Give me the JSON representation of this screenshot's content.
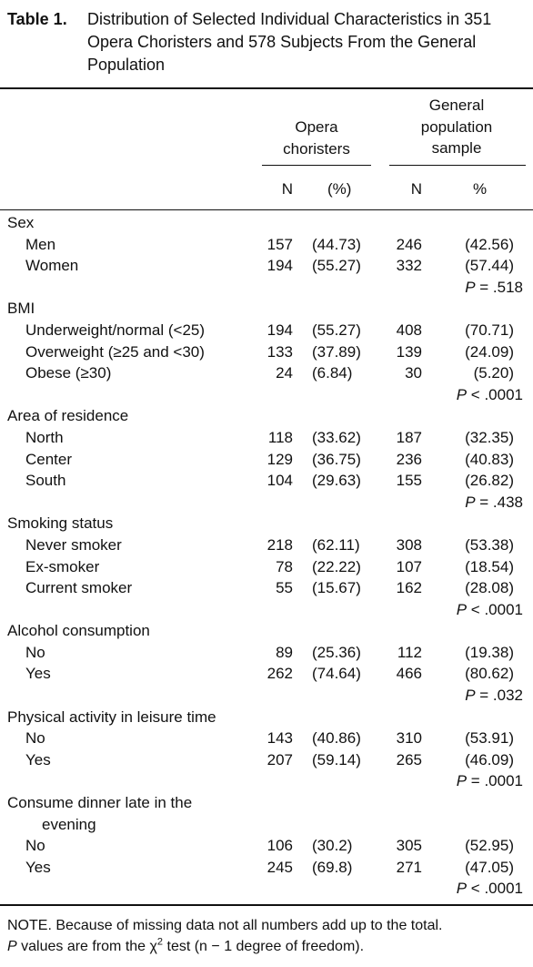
{
  "header": {
    "label": "Table 1.",
    "title": "Distribution of Selected Individual Characteristics in 351 Opera Choristers and 578 Subjects From the General Population"
  },
  "columns": {
    "group1": "Opera choristers",
    "group2": "General population sample",
    "n1": "N",
    "pct1": "(%)",
    "n2": "N",
    "pct2": "%"
  },
  "sections": [
    {
      "label": "Sex",
      "rows": [
        [
          "Men",
          "157",
          "(44.73)",
          "246",
          "(42.56)"
        ],
        [
          "Women",
          "194",
          "(55.27)",
          "332",
          "(57.44)"
        ]
      ],
      "p_symbol": "P",
      "p_value": " = .518"
    },
    {
      "label": "BMI",
      "rows": [
        [
          "Underweight/normal (<25)",
          "194",
          "(55.27)",
          "408",
          "(70.71)"
        ],
        [
          "Overweight (≥25 and <30)",
          "133",
          "(37.89)",
          "139",
          "(24.09)"
        ],
        [
          "Obese (≥30)",
          "24",
          "(6.84)",
          "30",
          "(5.20)"
        ]
      ],
      "p_symbol": "P",
      "p_value": " < .0001"
    },
    {
      "label": "Area of residence",
      "rows": [
        [
          "North",
          "118",
          "(33.62)",
          "187",
          "(32.35)"
        ],
        [
          "Center",
          "129",
          "(36.75)",
          "236",
          "(40.83)"
        ],
        [
          "South",
          "104",
          "(29.63)",
          "155",
          "(26.82)"
        ]
      ],
      "p_symbol": "P",
      "p_value": " = .438"
    },
    {
      "label": "Smoking status",
      "rows": [
        [
          "Never smoker",
          "218",
          "(62.11)",
          "308",
          "(53.38)"
        ],
        [
          "Ex-smoker",
          "78",
          "(22.22)",
          "107",
          "(18.54)"
        ],
        [
          "Current smoker",
          "55",
          "(15.67)",
          "162",
          "(28.08)"
        ]
      ],
      "p_symbol": "P",
      "p_value": " < .0001"
    },
    {
      "label": "Alcohol consumption",
      "rows": [
        [
          "No",
          "89",
          "(25.36)",
          "112",
          "(19.38)"
        ],
        [
          "Yes",
          "262",
          "(74.64)",
          "466",
          "(80.62)"
        ]
      ],
      "p_symbol": "P",
      "p_value": " = .032"
    },
    {
      "label": "Physical activity in leisure time",
      "rows": [
        [
          "No",
          "143",
          "(40.86)",
          "310",
          "(53.91)"
        ],
        [
          "Yes",
          "207",
          "(59.14)",
          "265",
          "(46.09)"
        ]
      ],
      "p_symbol": "P",
      "p_value": " = .0001"
    },
    {
      "label": "Consume dinner late in the evening",
      "rows": [
        [
          "No",
          "106",
          "(30.2)",
          "305",
          "(52.95)"
        ],
        [
          "Yes",
          "245",
          "(69.8)",
          "271",
          "(47.05)"
        ]
      ],
      "p_symbol": "P",
      "p_value": " < .0001"
    }
  ],
  "notes": {
    "line1": "NOTE. Because of missing data not all numbers add up to the total.",
    "line2": [
      "P",
      " values are from the χ",
      "2",
      " test (n − 1 degree of freedom)."
    ]
  }
}
